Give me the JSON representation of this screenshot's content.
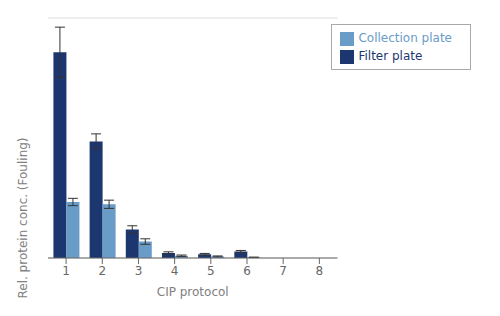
{
  "chart_data": {
    "type": "bar",
    "xlabel": "CIP protocol",
    "ylabel": "Rel. protein conc. (Fouling)",
    "categories": [
      "1",
      "2",
      "3",
      "4",
      "5",
      "6",
      "7",
      "8"
    ],
    "series": [
      {
        "name": "Filter plate",
        "color": "#1C3770",
        "values": [
          0.9,
          0.51,
          0.125,
          0.022,
          0.016,
          0.028,
          0.0,
          0.0
        ],
        "errors": [
          0.11,
          0.033,
          0.016,
          0.005,
          0.004,
          0.005,
          0.0,
          0.0
        ]
      },
      {
        "name": "Collection plate",
        "color": "#6A9CC8",
        "values": [
          0.245,
          0.235,
          0.072,
          0.01,
          0.007,
          0.003,
          0.0,
          0.0
        ],
        "errors": [
          0.016,
          0.018,
          0.012,
          0.003,
          0.002,
          0.001,
          0.0,
          0.0
        ]
      }
    ],
    "ylim": [
      0,
      1.05
    ],
    "yticks": [
      0,
      0.175,
      0.35,
      0.525,
      0.7,
      0.875,
      1.05
    ],
    "grid": true,
    "legend": "upper right",
    "tick_labels": "x"
  }
}
